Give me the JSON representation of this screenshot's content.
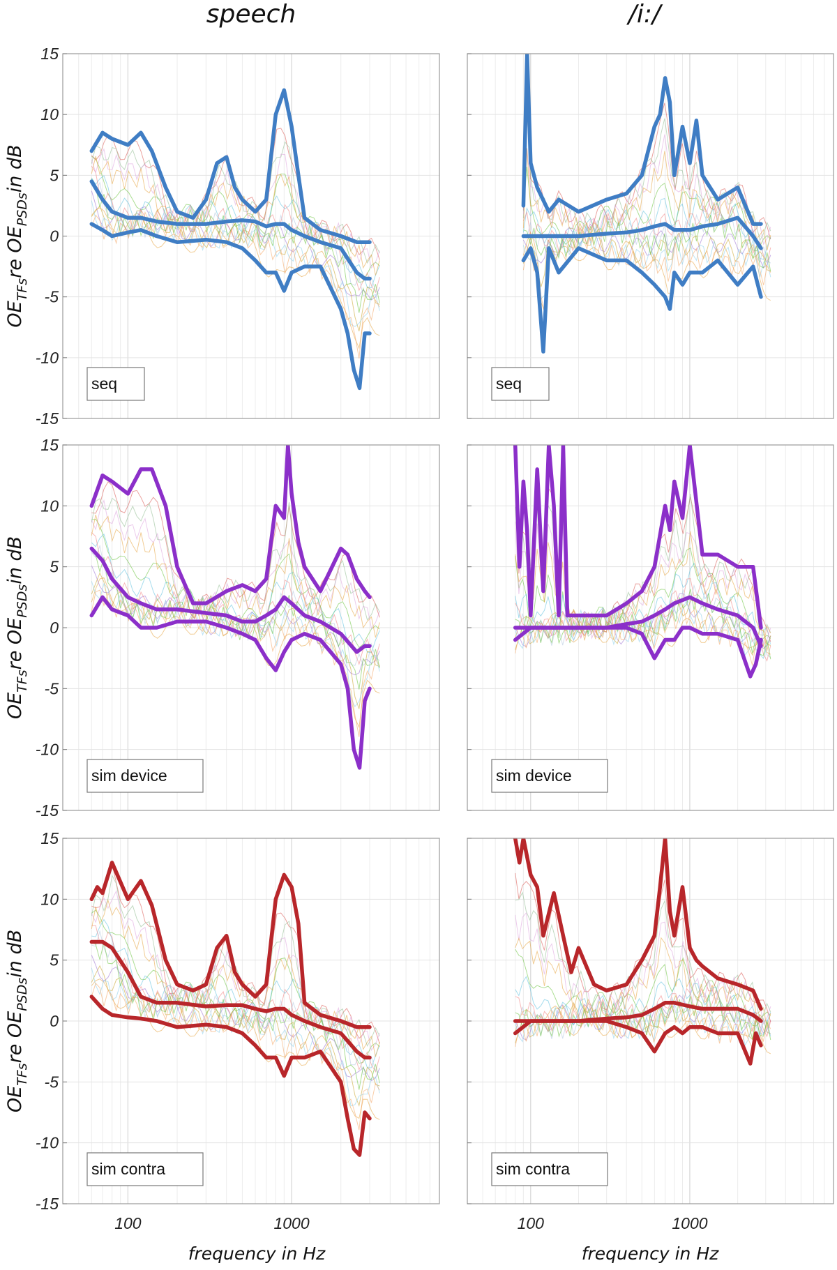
{
  "figure": {
    "column_titles": [
      "speech",
      "/i:/"
    ],
    "y_label": {
      "main_1": "OE",
      "sub_1": "TFs",
      "main_2": "re OE",
      "sub_2": "PSDs",
      "main_3": "in dB"
    },
    "x_label": "frequency in Hz",
    "y_ticks": [
      "15",
      "10",
      "5",
      "0",
      "-5",
      "-10",
      "-15"
    ],
    "x_tick_labels": [
      "100",
      "1000"
    ]
  },
  "chart_data": [
    {
      "type": "line",
      "panel": "speech-seq",
      "legend": "seq",
      "color": "#3f7dc4",
      "xscale": "log",
      "xlim": [
        40,
        8000
      ],
      "ylim": [
        -15,
        15
      ],
      "series": [
        {
          "name": "upper",
          "x": [
            60,
            70,
            80,
            100,
            120,
            140,
            170,
            200,
            250,
            300,
            350,
            400,
            450,
            500,
            600,
            700,
            800,
            900,
            1000,
            1100,
            1200,
            1500,
            2000,
            2500,
            2800,
            3000
          ],
          "values": [
            7,
            8.5,
            8,
            7.5,
            8.5,
            7,
            4,
            2,
            1.5,
            3,
            6,
            6.5,
            4,
            3,
            2,
            3,
            10,
            12,
            9,
            5,
            1.5,
            0.5,
            0,
            -0.5,
            -0.5,
            -0.5
          ]
        },
        {
          "name": "median",
          "x": [
            60,
            70,
            80,
            100,
            120,
            150,
            200,
            300,
            400,
            500,
            600,
            700,
            800,
            900,
            1000,
            1200,
            1500,
            2000,
            2500,
            2800,
            3000
          ],
          "values": [
            4.5,
            3,
            2,
            1.5,
            1.5,
            1.2,
            1,
            1,
            1.2,
            1.3,
            1.2,
            0.8,
            1,
            1,
            0.5,
            0,
            -0.5,
            -1,
            -3,
            -3.5,
            -3.5
          ]
        },
        {
          "name": "lower",
          "x": [
            60,
            70,
            80,
            100,
            120,
            150,
            200,
            300,
            400,
            500,
            600,
            700,
            800,
            900,
            1000,
            1200,
            1500,
            2000,
            2200,
            2400,
            2600,
            2800,
            3000
          ],
          "values": [
            1,
            0.5,
            0,
            0.3,
            0.5,
            0,
            -0.5,
            -0.3,
            -0.5,
            -1,
            -2,
            -3,
            -3,
            -4.5,
            -3,
            -2.5,
            -2.5,
            -6,
            -8,
            -11,
            -12.5,
            -8,
            -8
          ]
        }
      ]
    },
    {
      "type": "line",
      "panel": "vowel-seq",
      "legend": "seq",
      "color": "#3f7dc4",
      "xscale": "log",
      "xlim": [
        40,
        8000
      ],
      "ylim": [
        -15,
        15
      ],
      "series": [
        {
          "name": "upper",
          "x": [
            90,
            95,
            100,
            110,
            130,
            150,
            200,
            300,
            400,
            500,
            600,
            650,
            700,
            750,
            800,
            900,
            1000,
            1100,
            1200,
            1500,
            2000,
            2500,
            2800
          ],
          "values": [
            2.5,
            15,
            6,
            4,
            2,
            3,
            2,
            3,
            3.5,
            5,
            9,
            10,
            13,
            11,
            5,
            9,
            6,
            9.5,
            5,
            3,
            4,
            1,
            1
          ]
        },
        {
          "name": "median",
          "x": [
            90,
            100,
            150,
            200,
            300,
            400,
            500,
            600,
            700,
            800,
            1000,
            1200,
            1500,
            2000,
            2500,
            2800
          ],
          "values": [
            0,
            0,
            0,
            0,
            0.2,
            0.3,
            0.5,
            0.8,
            1,
            0.5,
            0.5,
            0.8,
            1,
            1.5,
            0,
            -1
          ]
        },
        {
          "name": "lower",
          "x": [
            90,
            100,
            110,
            120,
            130,
            150,
            200,
            300,
            400,
            500,
            600,
            700,
            750,
            800,
            900,
            1000,
            1200,
            1500,
            2000,
            2500,
            2800
          ],
          "values": [
            -2,
            -1,
            -3,
            -9.5,
            -1,
            -3,
            -1,
            -2,
            -2,
            -3,
            -4,
            -5,
            -6,
            -3,
            -4,
            -3,
            -3,
            -2,
            -4,
            -2.5,
            -5
          ]
        }
      ]
    },
    {
      "type": "line",
      "panel": "speech-sim-device",
      "legend": "sim device",
      "color": "#8b2fc9",
      "xscale": "log",
      "xlim": [
        40,
        8000
      ],
      "ylim": [
        -15,
        15
      ],
      "series": [
        {
          "name": "upper",
          "x": [
            60,
            70,
            80,
            100,
            120,
            140,
            170,
            200,
            250,
            300,
            400,
            500,
            600,
            700,
            800,
            900,
            950,
            1000,
            1100,
            1200,
            1500,
            2000,
            2200,
            2500,
            2800,
            3000
          ],
          "values": [
            10,
            12.5,
            12,
            11,
            13,
            13,
            10,
            5,
            2,
            2,
            3,
            3.5,
            3,
            4,
            10,
            9,
            15,
            11,
            7,
            5,
            3,
            6.5,
            6,
            4,
            3,
            2.5
          ]
        },
        {
          "name": "median",
          "x": [
            60,
            70,
            80,
            100,
            120,
            150,
            200,
            300,
            400,
            500,
            600,
            700,
            800,
            900,
            1000,
            1200,
            1500,
            2000,
            2500,
            2800,
            3000
          ],
          "values": [
            6.5,
            5.5,
            4,
            2.5,
            2,
            1.5,
            1.5,
            1.2,
            1,
            0.5,
            0.5,
            1,
            1.5,
            2.5,
            2,
            1,
            0.5,
            -0.5,
            -2,
            -1.5,
            -1.5
          ]
        },
        {
          "name": "lower",
          "x": [
            60,
            70,
            80,
            100,
            120,
            150,
            200,
            300,
            400,
            500,
            600,
            700,
            800,
            900,
            1000,
            1200,
            1500,
            2000,
            2200,
            2400,
            2600,
            2800,
            3000
          ],
          "values": [
            1,
            2.5,
            1.5,
            1,
            0,
            0,
            0.5,
            0.5,
            0,
            -0.5,
            -1,
            -2.5,
            -3.5,
            -2,
            -1,
            -0.5,
            -1,
            -3,
            -5,
            -10,
            -11.5,
            -6,
            -5
          ]
        }
      ]
    },
    {
      "type": "line",
      "panel": "vowel-sim-device",
      "legend": "sim device",
      "color": "#8b2fc9",
      "xscale": "log",
      "xlim": [
        40,
        8000
      ],
      "ylim": [
        -15,
        15
      ],
      "series": [
        {
          "name": "upper",
          "x": [
            80,
            85,
            90,
            95,
            100,
            110,
            120,
            130,
            140,
            150,
            160,
            170,
            200,
            300,
            400,
            500,
            600,
            700,
            750,
            800,
            900,
            1000,
            1200,
            1500,
            2000,
            2500,
            2800
          ],
          "values": [
            15,
            5,
            12,
            8,
            1,
            13,
            3,
            15,
            10,
            1,
            15,
            1,
            1,
            1,
            2,
            3,
            5,
            10,
            8,
            12,
            9,
            15,
            6,
            6,
            5,
            5,
            0
          ]
        },
        {
          "name": "median",
          "x": [
            80,
            100,
            150,
            200,
            300,
            400,
            500,
            600,
            700,
            800,
            1000,
            1200,
            1500,
            2000,
            2500,
            2800
          ],
          "values": [
            0,
            0,
            0,
            0,
            0,
            0.3,
            0.5,
            1,
            1.5,
            2,
            2.5,
            2,
            1.5,
            1,
            0,
            -1.5
          ]
        },
        {
          "name": "lower",
          "x": [
            80,
            100,
            150,
            200,
            300,
            400,
            500,
            600,
            700,
            800,
            900,
            1000,
            1200,
            1500,
            2000,
            2400,
            2600,
            2800
          ],
          "values": [
            -1,
            0,
            0,
            0,
            0,
            0,
            -0.5,
            -2.5,
            -1,
            -1,
            0,
            0,
            -0.5,
            -0.5,
            -1,
            -4,
            -3,
            -1
          ]
        }
      ]
    },
    {
      "type": "line",
      "panel": "speech-sim-contra",
      "legend": "sim contra",
      "color": "#b8262a",
      "xscale": "log",
      "xlim": [
        40,
        8000
      ],
      "ylim": [
        -15,
        15
      ],
      "series": [
        {
          "name": "upper",
          "x": [
            60,
            65,
            70,
            80,
            100,
            120,
            140,
            170,
            200,
            250,
            300,
            350,
            400,
            450,
            500,
            600,
            700,
            800,
            900,
            1000,
            1100,
            1200,
            1500,
            2000,
            2500,
            2800,
            3000
          ],
          "values": [
            10,
            11,
            10.5,
            13,
            10,
            11.5,
            9.5,
            5,
            3,
            2.5,
            3,
            6,
            7,
            4,
            3,
            2,
            3,
            10,
            12,
            11,
            8,
            1.5,
            0.5,
            0,
            -0.5,
            -0.5,
            -0.5
          ]
        },
        {
          "name": "median",
          "x": [
            60,
            70,
            80,
            100,
            120,
            150,
            200,
            300,
            400,
            500,
            600,
            700,
            800,
            900,
            1000,
            1200,
            1500,
            2000,
            2500,
            2800,
            3000
          ],
          "values": [
            6.5,
            6.5,
            6,
            4,
            2,
            1.5,
            1.5,
            1.2,
            1.3,
            1.3,
            1,
            0.8,
            1,
            1,
            0.5,
            0,
            -0.5,
            -1,
            -2.5,
            -3,
            -3
          ]
        },
        {
          "name": "lower",
          "x": [
            60,
            70,
            80,
            100,
            120,
            150,
            200,
            300,
            400,
            500,
            600,
            700,
            800,
            900,
            1000,
            1200,
            1500,
            2000,
            2200,
            2400,
            2600,
            2800,
            3000
          ],
          "values": [
            2,
            1,
            0.5,
            0.3,
            0.2,
            0,
            -0.5,
            -0.3,
            -0.5,
            -1,
            -2,
            -3,
            -3,
            -4.5,
            -3,
            -3,
            -2.5,
            -5,
            -8,
            -10.5,
            -11,
            -7.5,
            -8
          ]
        }
      ]
    },
    {
      "type": "line",
      "panel": "vowel-sim-contra",
      "legend": "sim contra",
      "color": "#b8262a",
      "xscale": "log",
      "xlim": [
        40,
        8000
      ],
      "ylim": [
        -15,
        15
      ],
      "series": [
        {
          "name": "upper",
          "x": [
            80,
            85,
            90,
            100,
            110,
            120,
            140,
            160,
            180,
            200,
            250,
            300,
            400,
            500,
            600,
            650,
            700,
            750,
            800,
            900,
            1000,
            1100,
            1200,
            1500,
            2000,
            2500,
            2800
          ],
          "values": [
            15,
            13,
            15,
            12,
            11,
            7,
            10.5,
            7,
            4,
            6,
            3,
            2.5,
            3,
            5,
            7,
            11,
            15,
            9,
            7,
            11,
            6,
            5,
            4.5,
            3.5,
            3,
            2.5,
            1
          ]
        },
        {
          "name": "median",
          "x": [
            80,
            100,
            150,
            200,
            300,
            400,
            500,
            600,
            700,
            800,
            1000,
            1200,
            1500,
            2000,
            2500,
            2800
          ],
          "values": [
            0,
            0,
            0,
            0,
            0.2,
            0.3,
            0.5,
            1,
            1.5,
            1.5,
            1.2,
            1,
            1,
            1,
            0.5,
            0
          ]
        },
        {
          "name": "lower",
          "x": [
            80,
            100,
            150,
            200,
            300,
            400,
            500,
            600,
            700,
            800,
            900,
            1000,
            1200,
            1500,
            2000,
            2400,
            2600,
            2800
          ],
          "values": [
            -1,
            0,
            0,
            0,
            0,
            -0.5,
            -1,
            -2.5,
            -1,
            -0.5,
            -1,
            -0.5,
            -0.5,
            -1,
            -1,
            -3.5,
            -1,
            -2
          ]
        }
      ]
    }
  ]
}
